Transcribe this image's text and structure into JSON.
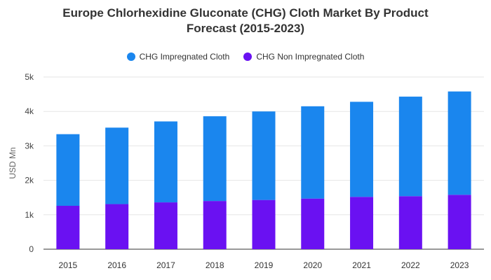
{
  "chart_data": {
    "type": "bar",
    "stacked": true,
    "title_line1": "Europe Chlorhexidine Gluconate (CHG) Cloth Market By Product",
    "title_line2": "Forecast (2015-2023)",
    "ylabel": "USD Mn",
    "xlabel": "",
    "ylim": [
      0,
      5000
    ],
    "yticks": [
      0,
      1000,
      2000,
      3000,
      4000,
      5000
    ],
    "ytick_labels": [
      "0",
      "1k",
      "2k",
      "3k",
      "4k",
      "5k"
    ],
    "grid": true,
    "legend_position": "top",
    "categories": [
      "2015",
      "2016",
      "2017",
      "2018",
      "2019",
      "2020",
      "2021",
      "2022",
      "2023"
    ],
    "series": [
      {
        "name": "CHG Impregnated Cloth",
        "color": "#1a86ee",
        "values": [
          2080,
          2220,
          2350,
          2460,
          2570,
          2680,
          2760,
          2890,
          3000
        ]
      },
      {
        "name": "CHG Non Impregnated Cloth",
        "color": "#6a11f2",
        "values": [
          1260,
          1310,
          1360,
          1400,
          1430,
          1470,
          1520,
          1540,
          1580
        ]
      }
    ]
  }
}
